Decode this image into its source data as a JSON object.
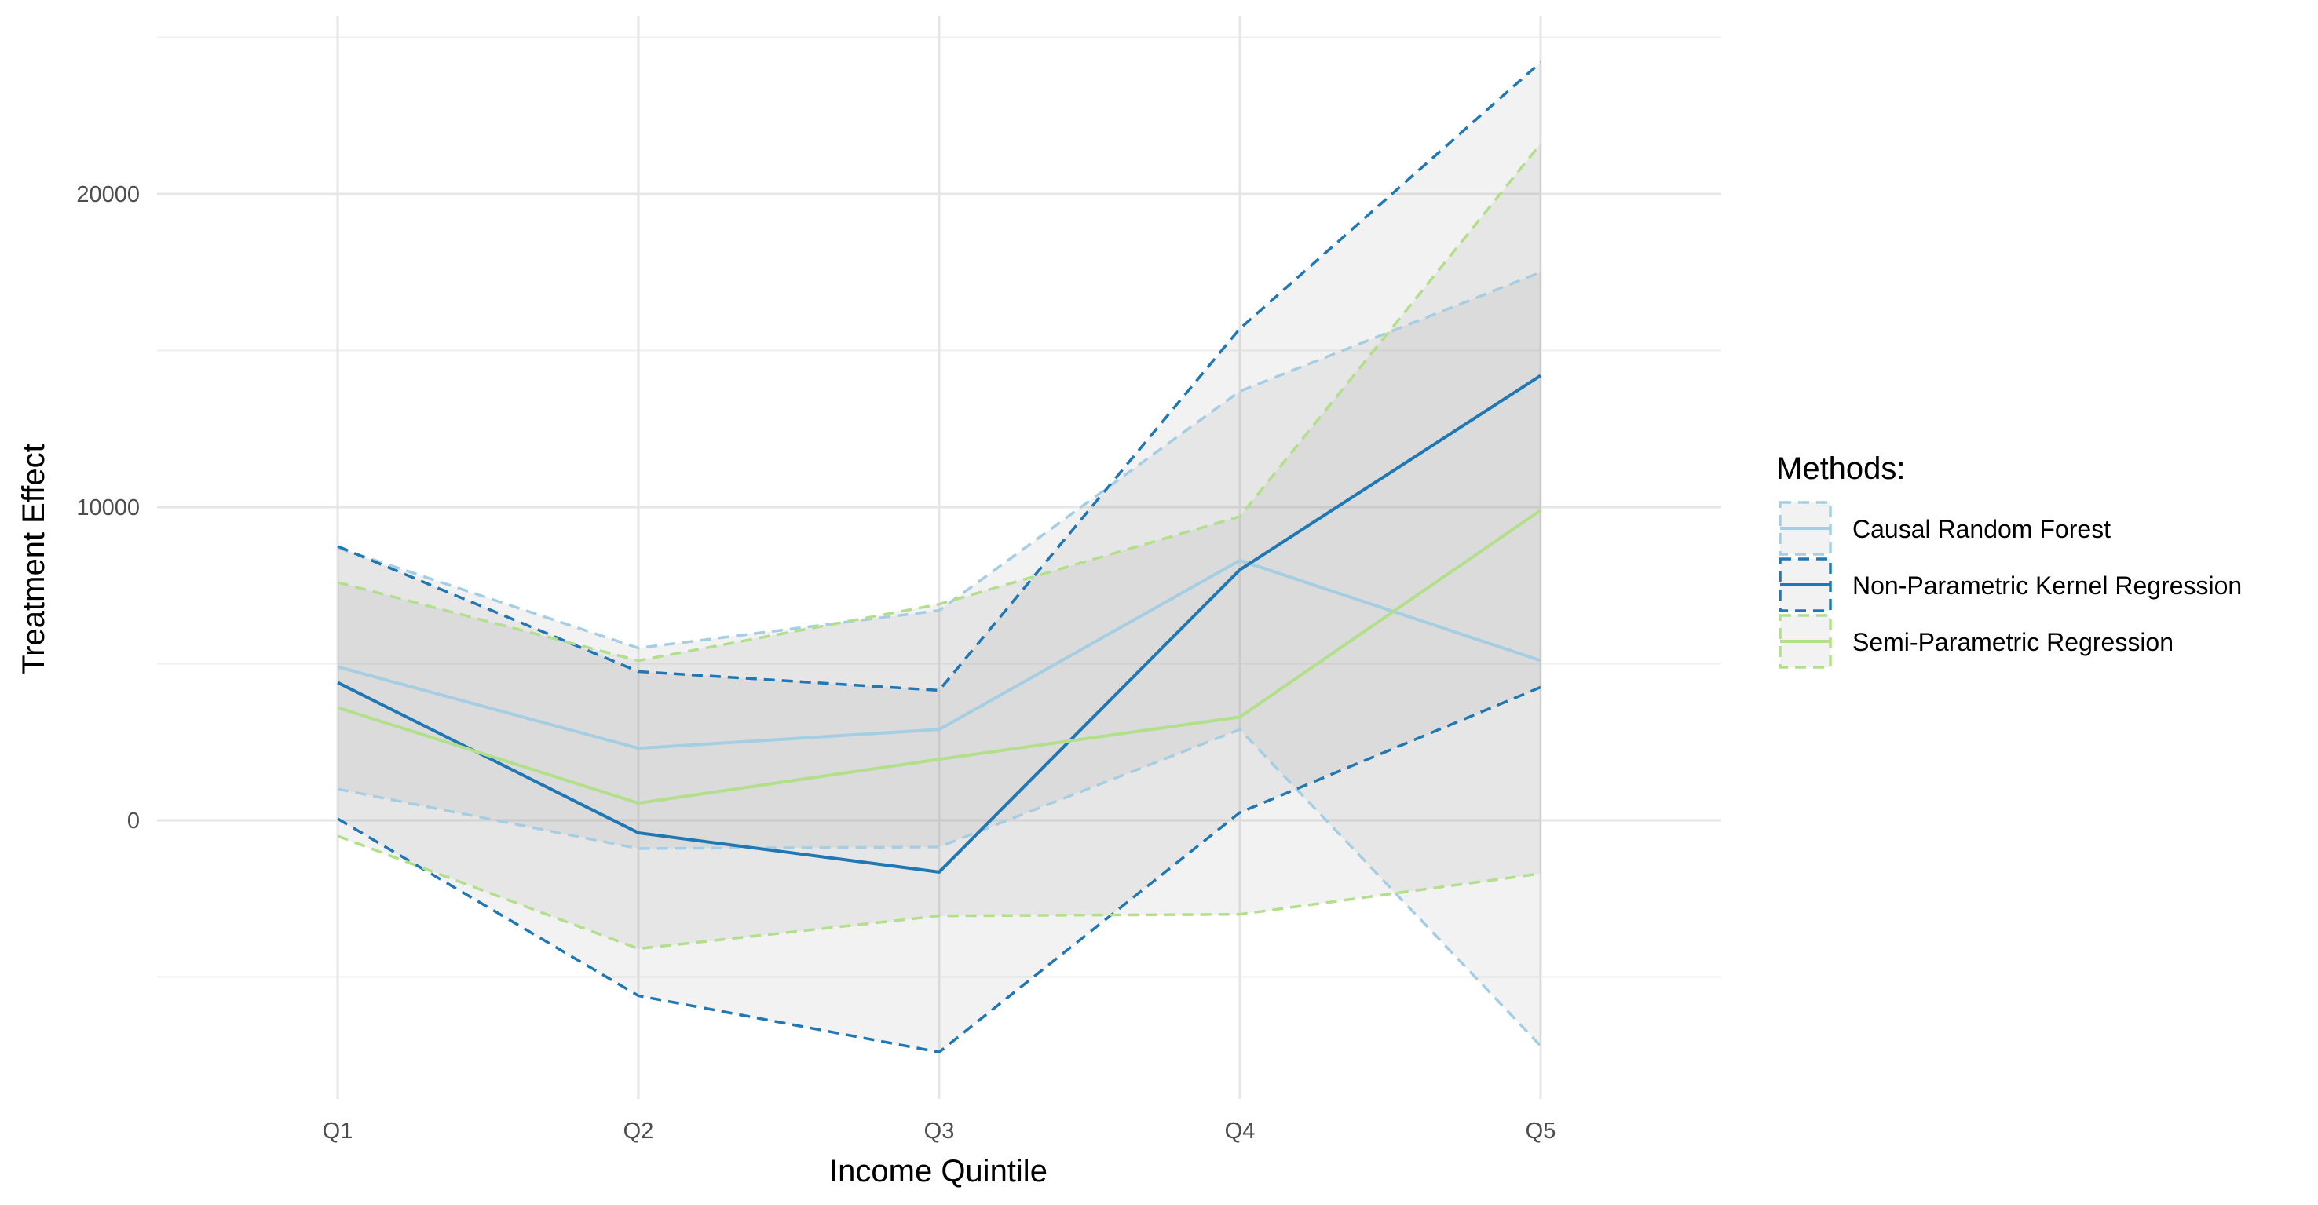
{
  "chart_data": {
    "type": "line",
    "title": "",
    "xlabel": "Income Quintile",
    "ylabel": "Treatment Effect",
    "categories": [
      "Q1",
      "Q2",
      "Q3",
      "Q4",
      "Q5"
    ],
    "ylim": [
      -9000,
      25000
    ],
    "yticks": [
      0,
      10000,
      20000
    ],
    "y_tick_labels": [
      "0",
      "10000",
      "20000"
    ],
    "grid": true,
    "legend": {
      "title": "Methods:",
      "placement": "right"
    },
    "series": [
      {
        "name": "Causal Random Forest",
        "color": "#a6cee3",
        "estimate": [
          4900,
          2300,
          2900,
          8300,
          5100
        ],
        "lower": [
          1000,
          -900,
          -850,
          2900,
          -7200
        ],
        "upper": [
          8700,
          5500,
          6700,
          13700,
          17500
        ]
      },
      {
        "name": "Non-Parametric Kernel Regression",
        "color": "#1f78b4",
        "estimate": [
          4400,
          -400,
          -1650,
          8000,
          14200
        ],
        "lower": [
          50,
          -5600,
          -7400,
          250,
          4250
        ],
        "upper": [
          8750,
          4750,
          4150,
          15700,
          24200
        ]
      },
      {
        "name": "Semi-Parametric Regression",
        "color": "#b2df8a",
        "estimate": [
          3600,
          550,
          1950,
          3300,
          9900
        ],
        "lower": [
          -500,
          -4100,
          -3050,
          -3000,
          -1700
        ],
        "upper": [
          7600,
          5100,
          6900,
          9700,
          21600
        ]
      }
    ]
  }
}
